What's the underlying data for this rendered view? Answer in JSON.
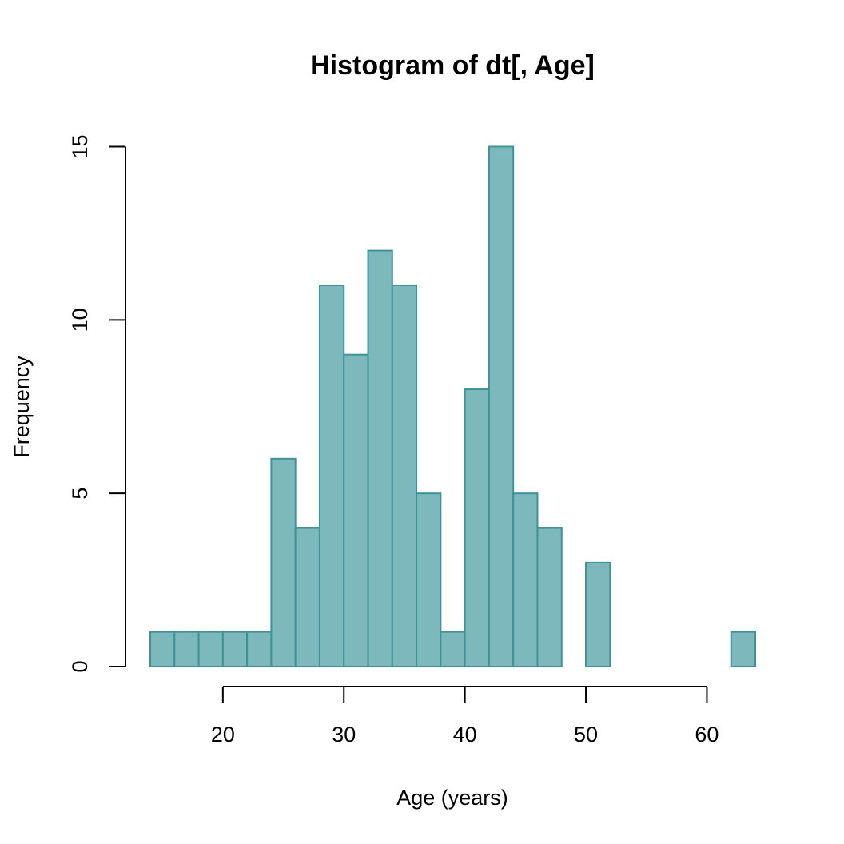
{
  "chart_data": {
    "type": "bar",
    "title": "Histogram of dt[, Age]",
    "xlabel": "Age (years)",
    "ylabel": "Frequency",
    "bin_width": 2,
    "bins": [
      {
        "start": 14,
        "end": 16,
        "count": 1
      },
      {
        "start": 16,
        "end": 18,
        "count": 1
      },
      {
        "start": 18,
        "end": 20,
        "count": 1
      },
      {
        "start": 20,
        "end": 22,
        "count": 1
      },
      {
        "start": 22,
        "end": 24,
        "count": 1
      },
      {
        "start": 24,
        "end": 26,
        "count": 6
      },
      {
        "start": 26,
        "end": 28,
        "count": 4
      },
      {
        "start": 28,
        "end": 30,
        "count": 11
      },
      {
        "start": 30,
        "end": 32,
        "count": 9
      },
      {
        "start": 32,
        "end": 34,
        "count": 12
      },
      {
        "start": 34,
        "end": 36,
        "count": 11
      },
      {
        "start": 36,
        "end": 38,
        "count": 5
      },
      {
        "start": 38,
        "end": 40,
        "count": 1
      },
      {
        "start": 40,
        "end": 42,
        "count": 8
      },
      {
        "start": 42,
        "end": 44,
        "count": 15
      },
      {
        "start": 44,
        "end": 46,
        "count": 5
      },
      {
        "start": 46,
        "end": 48,
        "count": 4
      },
      {
        "start": 48,
        "end": 50,
        "count": 0
      },
      {
        "start": 50,
        "end": 52,
        "count": 3
      },
      {
        "start": 52,
        "end": 54,
        "count": 0
      },
      {
        "start": 54,
        "end": 56,
        "count": 0
      },
      {
        "start": 56,
        "end": 58,
        "count": 0
      },
      {
        "start": 58,
        "end": 60,
        "count": 0
      },
      {
        "start": 60,
        "end": 62,
        "count": 0
      },
      {
        "start": 62,
        "end": 64,
        "count": 1
      }
    ],
    "xlim": [
      14,
      64
    ],
    "ylim": [
      0,
      15
    ],
    "xticks": [
      20,
      30,
      40,
      50,
      60
    ],
    "yticks": [
      0,
      5,
      10,
      15
    ],
    "grid": false,
    "colors": {
      "bar_fill": "#7db8bd",
      "bar_stroke": "#3e9399"
    }
  }
}
